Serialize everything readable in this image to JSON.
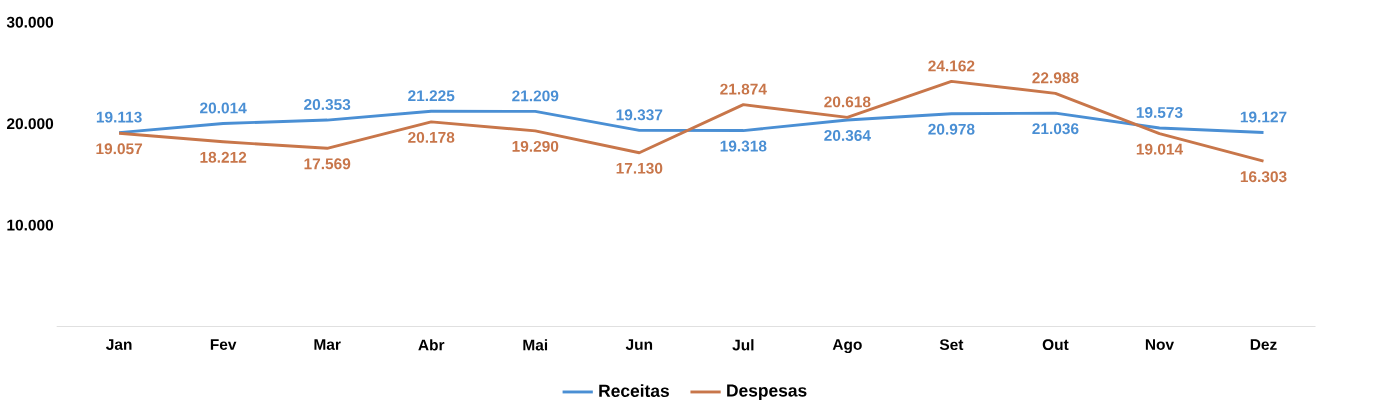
{
  "chart_data": {
    "type": "line",
    "categories": [
      "Jan",
      "Fev",
      "Mar",
      "Abr",
      "Mai",
      "Jun",
      "Jul",
      "Ago",
      "Set",
      "Out",
      "Nov",
      "Dez"
    ],
    "series": [
      {
        "name": "Receitas",
        "color": "#4a8fd4",
        "values": [
          19113,
          20014,
          20353,
          21225,
          21209,
          19337,
          19318,
          20364,
          20978,
          21036,
          19573,
          19127
        ],
        "value_labels": [
          "19.113",
          "20.014",
          "20.353",
          "21.225",
          "21.209",
          "19.337",
          "19.318",
          "20.364",
          "20.978",
          "21.036",
          "19.573",
          "19.127"
        ]
      },
      {
        "name": "Despesas",
        "color": "#c8764a",
        "values": [
          19057,
          18212,
          17569,
          20178,
          19290,
          17130,
          21874,
          20618,
          24162,
          22988,
          19014,
          16303
        ],
        "value_labels": [
          "19.057",
          "18.212",
          "17.569",
          "20.178",
          "19.290",
          "17.130",
          "21.874",
          "20.618",
          "24.162",
          "22.988",
          "19.014",
          "16.303"
        ]
      }
    ],
    "ylim": [
      0,
      30000
    ],
    "yticks": [
      {
        "value": 10000,
        "label": "10.000"
      },
      {
        "value": 20000,
        "label": "20.000"
      },
      {
        "value": 30000,
        "label": "30.000"
      }
    ],
    "grid": false,
    "legend": "bottom",
    "marker": "none",
    "line_style": "solid"
  }
}
